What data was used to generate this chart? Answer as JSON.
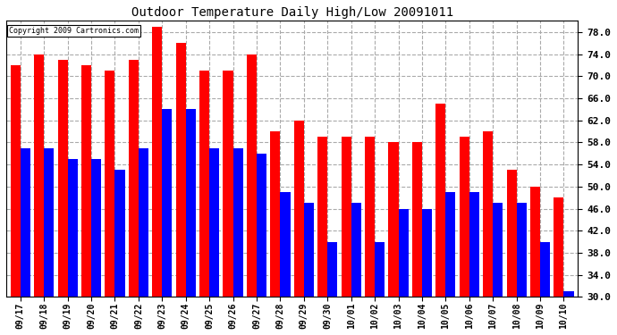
{
  "title": "Outdoor Temperature Daily High/Low 20091011",
  "copyright_text": "Copyright 2009 Cartronics.com",
  "categories": [
    "09/17",
    "09/18",
    "09/19",
    "09/20",
    "09/21",
    "09/22",
    "09/23",
    "09/24",
    "09/25",
    "09/26",
    "09/27",
    "09/28",
    "09/29",
    "09/30",
    "10/01",
    "10/02",
    "10/03",
    "10/04",
    "10/05",
    "10/06",
    "10/07",
    "10/08",
    "10/09",
    "10/10"
  ],
  "highs": [
    72,
    74,
    73,
    72,
    71,
    73,
    79,
    76,
    71,
    71,
    74,
    60,
    62,
    59,
    59,
    59,
    58,
    58,
    65,
    59,
    60,
    53,
    50,
    48
  ],
  "lows": [
    57,
    57,
    55,
    55,
    53,
    57,
    64,
    64,
    57,
    57,
    56,
    49,
    47,
    40,
    47,
    40,
    46,
    46,
    49,
    49,
    47,
    47,
    40,
    31
  ],
  "high_color": "#ff0000",
  "low_color": "#0000ff",
  "background_color": "#ffffff",
  "plot_bg_color": "#ffffff",
  "grid_color": "#aaaaaa",
  "ymin": 30,
  "ymax": 80,
  "yticks": [
    30.0,
    34.0,
    38.0,
    42.0,
    46.0,
    50.0,
    54.0,
    58.0,
    62.0,
    66.0,
    70.0,
    74.0,
    78.0
  ],
  "bar_width": 0.42,
  "figwidth": 6.9,
  "figheight": 3.75,
  "dpi": 100
}
